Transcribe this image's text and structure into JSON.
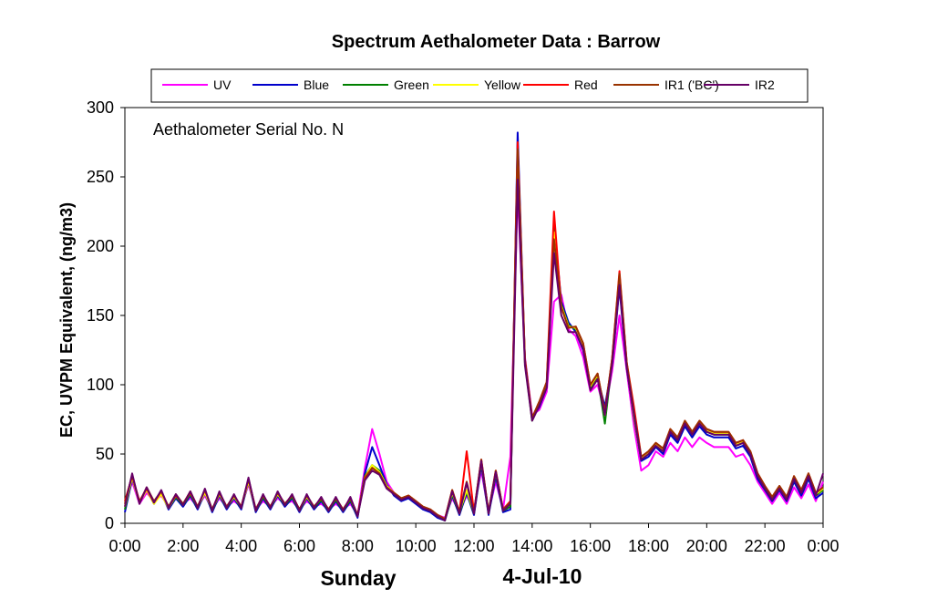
{
  "chart_data": {
    "type": "line",
    "title": "Spectrum Aethalometer Data  :  Barrow",
    "annotation": "Aethalometer  Serial No. N",
    "ylabel": "EC, UVPM Equivalent, (ng/m3)",
    "xlabel_left": "Sunday",
    "xlabel_right": "4-Jul-10",
    "ylim": [
      0,
      300
    ],
    "yticks": [
      "0",
      "50",
      "100",
      "150",
      "200",
      "250",
      "300"
    ],
    "xlim": [
      0,
      24
    ],
    "xticks": [
      "0:00",
      "2:00",
      "4:00",
      "6:00",
      "8:00",
      "10:00",
      "12:00",
      "14:00",
      "16:00",
      "18:00",
      "20:00",
      "22:00",
      "0:00"
    ],
    "grid": false,
    "legend_position": "top",
    "x": [
      0.0,
      0.25,
      0.5,
      0.75,
      1.0,
      1.25,
      1.5,
      1.75,
      2.0,
      2.25,
      2.5,
      2.75,
      3.0,
      3.25,
      3.5,
      3.75,
      4.0,
      4.25,
      4.5,
      4.75,
      5.0,
      5.25,
      5.5,
      5.75,
      6.0,
      6.25,
      6.5,
      6.75,
      7.0,
      7.25,
      7.5,
      7.75,
      8.0,
      8.25,
      8.5,
      8.75,
      9.0,
      9.25,
      9.5,
      9.75,
      10.0,
      10.25,
      10.5,
      10.75,
      11.0,
      11.25,
      11.5,
      11.75,
      12.0,
      12.25,
      12.5,
      12.75,
      13.0,
      13.25,
      13.5,
      13.75,
      14.0,
      14.25,
      14.5,
      14.75,
      15.0,
      15.25,
      15.5,
      15.75,
      16.0,
      16.25,
      16.5,
      16.75,
      17.0,
      17.25,
      17.5,
      17.75,
      18.0,
      18.25,
      18.5,
      18.75,
      19.0,
      19.25,
      19.5,
      19.75,
      20.0,
      20.25,
      20.5,
      20.75,
      21.0,
      21.25,
      21.5,
      21.75,
      22.0,
      22.25,
      22.5,
      22.75,
      23.0,
      23.25,
      23.5,
      23.75,
      24.0
    ],
    "series": [
      {
        "name": "UV",
        "color": "#ff00ff",
        "values": [
          12,
          30,
          14,
          22,
          16,
          20,
          12,
          18,
          14,
          18,
          12,
          20,
          10,
          18,
          12,
          16,
          12,
          28,
          10,
          16,
          12,
          18,
          14,
          16,
          10,
          16,
          12,
          14,
          10,
          14,
          10,
          14,
          6,
          40,
          68,
          50,
          30,
          22,
          18,
          20,
          16,
          12,
          10,
          6,
          4,
          18,
          8,
          20,
          10,
          38,
          8,
          30,
          10,
          48,
          240,
          120,
          78,
          82,
          95,
          160,
          165,
          140,
          135,
          120,
          95,
          100,
          80,
          110,
          150,
          110,
          70,
          38,
          42,
          52,
          48,
          58,
          52,
          62,
          55,
          62,
          58,
          55,
          55,
          55,
          48,
          50,
          42,
          30,
          22,
          14,
          22,
          14,
          26,
          18,
          28,
          16,
          30
        ]
      },
      {
        "name": "Blue",
        "color": "#0000cc",
        "values": [
          8,
          32,
          16,
          24,
          14,
          22,
          10,
          18,
          12,
          20,
          10,
          22,
          8,
          20,
          10,
          18,
          10,
          30,
          8,
          18,
          10,
          20,
          12,
          18,
          8,
          18,
          10,
          16,
          8,
          16,
          8,
          16,
          4,
          36,
          55,
          42,
          28,
          20,
          16,
          18,
          14,
          10,
          8,
          4,
          2,
          20,
          6,
          22,
          6,
          42,
          6,
          34,
          8,
          10,
          282,
          118,
          76,
          84,
          98,
          215,
          160,
          145,
          138,
          125,
          98,
          105,
          84,
          115,
          170,
          112,
          78,
          45,
          48,
          55,
          50,
          64,
          58,
          70,
          62,
          70,
          64,
          62,
          62,
          62,
          54,
          56,
          48,
          32,
          24,
          16,
          24,
          16,
          30,
          20,
          32,
          18,
          22
        ]
      },
      {
        "name": "Green",
        "color": "#008000",
        "values": [
          10,
          34,
          15,
          25,
          15,
          22,
          11,
          19,
          13,
          21,
          11,
          23,
          9,
          21,
          11,
          19,
          11,
          31,
          9,
          19,
          11,
          21,
          13,
          19,
          9,
          19,
          11,
          17,
          9,
          17,
          9,
          17,
          5,
          34,
          42,
          38,
          27,
          21,
          17,
          19,
          15,
          11,
          9,
          5,
          2,
          21,
          7,
          23,
          7,
          44,
          7,
          36,
          9,
          12,
          268,
          116,
          74,
          86,
          100,
          212,
          158,
          143,
          140,
          128,
          98,
          106,
          72,
          117,
          175,
          114,
          76,
          46,
          50,
          56,
          52,
          66,
          60,
          72,
          64,
          72,
          66,
          64,
          64,
          64,
          56,
          58,
          50,
          34,
          25,
          17,
          25,
          17,
          32,
          22,
          34,
          20,
          24
        ]
      },
      {
        "name": "Yellow",
        "color": "#ffff00",
        "values": [
          12,
          33,
          15,
          24,
          14,
          21,
          11,
          20,
          14,
          22,
          12,
          22,
          10,
          21,
          12,
          19,
          12,
          30,
          10,
          20,
          12,
          21,
          14,
          20,
          10,
          19,
          12,
          18,
          10,
          18,
          10,
          18,
          6,
          33,
          42,
          37,
          27,
          22,
          18,
          20,
          16,
          12,
          10,
          6,
          3,
          22,
          8,
          24,
          8,
          45,
          8,
          37,
          10,
          14,
          270,
          117,
          75,
          87,
          101,
          210,
          157,
          142,
          141,
          129,
          99,
          107,
          78,
          118,
          178,
          115,
          77,
          47,
          51,
          57,
          53,
          67,
          61,
          73,
          65,
          73,
          67,
          65,
          65,
          65,
          57,
          59,
          51,
          35,
          26,
          18,
          26,
          18,
          33,
          23,
          35,
          21,
          25
        ]
      },
      {
        "name": "Red",
        "color": "#ff0000",
        "values": [
          16,
          34,
          16,
          25,
          15,
          23,
          12,
          20,
          14,
          22,
          12,
          24,
          10,
          22,
          12,
          20,
          12,
          32,
          10,
          20,
          12,
          22,
          14,
          20,
          10,
          20,
          12,
          18,
          10,
          18,
          10,
          18,
          6,
          33,
          40,
          36,
          26,
          22,
          18,
          20,
          16,
          12,
          10,
          6,
          3,
          24,
          8,
          52,
          8,
          46,
          8,
          38,
          10,
          16,
          275,
          118,
          76,
          88,
          102,
          225,
          156,
          141,
          142,
          130,
          100,
          108,
          80,
          119,
          182,
          116,
          84,
          48,
          52,
          58,
          54,
          68,
          62,
          74,
          66,
          74,
          68,
          66,
          66,
          66,
          58,
          60,
          52,
          36,
          27,
          19,
          27,
          19,
          34,
          24,
          36,
          22,
          26
        ]
      },
      {
        "name": "IR1 ('BC')",
        "color": "#993300",
        "values": [
          14,
          35,
          15,
          26,
          16,
          23,
          12,
          21,
          14,
          23,
          12,
          24,
          10,
          22,
          12,
          20,
          12,
          32,
          10,
          20,
          12,
          22,
          14,
          20,
          10,
          20,
          12,
          18,
          10,
          18,
          10,
          18,
          6,
          32,
          40,
          36,
          26,
          22,
          18,
          20,
          16,
          12,
          10,
          6,
          3,
          24,
          8,
          30,
          8,
          46,
          8,
          38,
          10,
          15,
          270,
          118,
          76,
          88,
          102,
          205,
          156,
          141,
          142,
          130,
          100,
          108,
          80,
          119,
          180,
          116,
          80,
          48,
          52,
          58,
          54,
          68,
          62,
          74,
          66,
          74,
          68,
          66,
          66,
          66,
          58,
          60,
          52,
          36,
          27,
          19,
          27,
          19,
          34,
          24,
          36,
          22,
          26
        ]
      },
      {
        "name": "IR2",
        "color": "#660066",
        "values": [
          12,
          36,
          14,
          26,
          15,
          24,
          11,
          21,
          13,
          23,
          11,
          25,
          9,
          23,
          11,
          21,
          11,
          33,
          9,
          21,
          11,
          23,
          13,
          21,
          9,
          21,
          11,
          19,
          9,
          19,
          9,
          19,
          5,
          31,
          38,
          35,
          25,
          21,
          17,
          19,
          15,
          11,
          9,
          5,
          2,
          23,
          7,
          29,
          7,
          45,
          7,
          37,
          9,
          14,
          248,
          114,
          74,
          85,
          98,
          195,
          150,
          138,
          138,
          126,
          96,
          104,
          78,
          115,
          172,
          112,
          78,
          46,
          50,
          56,
          52,
          66,
          60,
          72,
          64,
          72,
          66,
          64,
          64,
          64,
          56,
          58,
          50,
          34,
          25,
          17,
          25,
          17,
          32,
          22,
          34,
          20,
          36
        ]
      }
    ]
  }
}
